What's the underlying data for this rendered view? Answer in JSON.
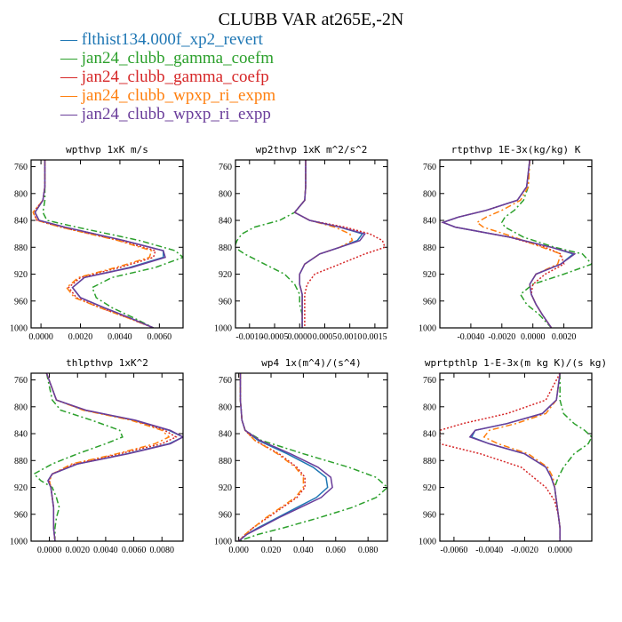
{
  "figure": {
    "title": "CLUBB VAR at265E,-2N"
  },
  "legend": [
    {
      "label": "— flthist134.000f_xp2_revert",
      "color": "#1f77b4",
      "dash": "solid"
    },
    {
      "label": "— jan24_clubb_gamma_coefm",
      "color": "#2ca02c",
      "dash": "dashdot"
    },
    {
      "label": "— jan24_clubb_gamma_coefp",
      "color": "#d62728",
      "dash": "dot"
    },
    {
      "label": "— jan24_clubb_wpxp_ri_expm",
      "color": "#ff7f0e",
      "dash": "dashdot"
    },
    {
      "label": "— jan24_clubb_wpxp_ri_expp",
      "color": "#6a3d9a",
      "dash": "solid"
    }
  ],
  "chart_data": [
    {
      "type": "line",
      "title": "wpthvp  1xK m/s",
      "ylim": [
        1000,
        750
      ],
      "xlim": [
        -0.0005,
        0.0072
      ],
      "yticks": [
        760,
        800,
        840,
        880,
        920,
        960,
        1000
      ],
      "xticks": [
        0.0,
        0.002,
        0.004,
        0.006
      ],
      "xticklabels": [
        "0.0000",
        "0.0020",
        "0.0040",
        "0.0060"
      ],
      "y": [
        750,
        790,
        810,
        828,
        840,
        850,
        870,
        885,
        895,
        910,
        925,
        940,
        955,
        970,
        985,
        1000
      ],
      "series": [
        {
          "name": "flthist134.000f_xp2_revert",
          "values": [
            0.0002,
            0.0002,
            0.0001,
            -0.0003,
            -0.0001,
            0.0012,
            0.0042,
            0.0062,
            0.0062,
            0.0045,
            0.0022,
            0.0016,
            0.002,
            0.0032,
            0.0045,
            0.0057
          ]
        },
        {
          "name": "jan24_clubb_gamma_coefm",
          "values": [
            0.0002,
            0.0002,
            0.0002,
            0.0001,
            0.0003,
            0.0018,
            0.005,
            0.0068,
            0.0072,
            0.0058,
            0.0036,
            0.0026,
            0.0028,
            0.0036,
            0.0047,
            0.0057
          ]
        },
        {
          "name": "jan24_clubb_gamma_coefp",
          "values": [
            0.0002,
            0.0002,
            0.0001,
            -0.0004,
            -0.0002,
            0.001,
            0.004,
            0.0058,
            0.0057,
            0.004,
            0.002,
            0.0014,
            0.0018,
            0.003,
            0.0044,
            0.0057
          ]
        },
        {
          "name": "jan24_clubb_wpxp_ri_expm",
          "values": [
            0.0002,
            0.0002,
            0.0001,
            -0.0004,
            -0.0002,
            0.001,
            0.0039,
            0.0056,
            0.0055,
            0.0038,
            0.0019,
            0.0013,
            0.0017,
            0.003,
            0.0044,
            0.0057
          ]
        },
        {
          "name": "jan24_clubb_wpxp_ri_expp",
          "values": [
            0.0002,
            0.0002,
            0.0001,
            -0.0003,
            -0.0001,
            0.0012,
            0.0042,
            0.0062,
            0.0063,
            0.0046,
            0.0022,
            0.0016,
            0.002,
            0.0032,
            0.0045,
            0.0057
          ]
        }
      ]
    },
    {
      "type": "line",
      "title": "wp2thvp  1xK m^2/s^2",
      "ylim": [
        1000,
        750
      ],
      "xlim": [
        -0.00128,
        0.00175
      ],
      "yticks": [
        760,
        800,
        840,
        880,
        920,
        960,
        1000
      ],
      "xticks": [
        -0.001,
        -0.0005,
        0.0,
        0.0005,
        0.001,
        0.0015
      ],
      "xticklabels": [
        "-0.0010",
        "-0.0005",
        "0.0000",
        "0.0005",
        "0.0010",
        "0.0015"
      ],
      "y": [
        750,
        790,
        810,
        828,
        840,
        850,
        860,
        870,
        880,
        890,
        905,
        920,
        935,
        950,
        965,
        980,
        1000
      ],
      "series": [
        {
          "name": "flthist134.000f_xp2_revert",
          "values": [
            0.00012,
            0.00012,
            0.0001,
            -0.0001,
            0.0002,
            0.0008,
            0.00125,
            0.00115,
            0.0008,
            0.0004,
            0.0001,
            0.0,
            0.0,
            5e-05,
            5e-05,
            5e-05,
            5e-05
          ]
        },
        {
          "name": "jan24_clubb_gamma_coefm",
          "values": [
            0.00012,
            0.00012,
            0.0001,
            -0.0001,
            -0.0004,
            -0.0009,
            -0.00115,
            -0.00125,
            -0.0013,
            -0.0011,
            -0.0007,
            -0.0003,
            -0.0001,
            0.0,
            0.0,
            5e-05,
            5e-05
          ]
        },
        {
          "name": "jan24_clubb_gamma_coefp",
          "values": [
            0.00012,
            0.00012,
            0.0001,
            -0.0001,
            0.0002,
            0.0009,
            0.0014,
            0.00165,
            0.0017,
            0.0013,
            0.0008,
            0.0003,
            0.00015,
            0.0001,
            0.0001,
            0.0001,
            0.0001
          ]
        },
        {
          "name": "jan24_clubb_wpxp_ri_expm",
          "values": [
            0.00012,
            0.00012,
            0.0001,
            -0.0001,
            0.0002,
            0.0007,
            0.001,
            0.00105,
            0.0008,
            0.0004,
            0.0001,
            0.0,
            0.0,
            5e-05,
            5e-05,
            5e-05,
            5e-05
          ]
        },
        {
          "name": "jan24_clubb_wpxp_ri_expp",
          "values": [
            0.00012,
            0.00012,
            0.0001,
            -0.0001,
            0.0002,
            0.0008,
            0.0013,
            0.0012,
            0.0008,
            0.0004,
            0.0001,
            0.0,
            0.0,
            5e-05,
            5e-05,
            5e-05,
            5e-05
          ]
        }
      ]
    },
    {
      "type": "line",
      "title": "rtpthvp  1E-3x(kg/kg) K",
      "ylim": [
        1000,
        750
      ],
      "xlim": [
        -0.006,
        0.0038
      ],
      "yticks": [
        760,
        800,
        840,
        880,
        920,
        960,
        1000
      ],
      "xticks": [
        -0.004,
        -0.002,
        0.0,
        0.002
      ],
      "xticklabels": [
        "-0.0040",
        "-0.0020",
        "0.0000",
        "0.0020"
      ],
      "y": [
        750,
        790,
        810,
        825,
        835,
        843,
        850,
        865,
        880,
        890,
        905,
        920,
        935,
        950,
        965,
        980,
        1000
      ],
      "series": [
        {
          "name": "flthist134.000f_xp2_revert",
          "values": [
            -0.0002,
            -0.0004,
            -0.001,
            -0.003,
            -0.0048,
            -0.0058,
            -0.005,
            -0.0015,
            0.0012,
            0.0026,
            0.0018,
            0.0002,
            -0.0002,
            -0.0001,
            0.0002,
            0.0006,
            0.0012
          ]
        },
        {
          "name": "jan24_clubb_gamma_coefm",
          "values": [
            -0.0002,
            -0.0003,
            -0.0006,
            -0.0012,
            -0.0018,
            -0.002,
            -0.0018,
            -0.0006,
            0.0014,
            0.0032,
            0.0038,
            0.002,
            0.0,
            -0.0008,
            -0.0004,
            0.0004,
            0.0012
          ]
        },
        {
          "name": "jan24_clubb_gamma_coefp",
          "values": [
            -0.0002,
            -0.0004,
            -0.001,
            -0.003,
            -0.0048,
            -0.0058,
            -0.005,
            -0.0015,
            0.0008,
            0.0018,
            0.002,
            0.0008,
            0.0,
            -0.0001,
            0.0002,
            0.0006,
            0.0012
          ]
        },
        {
          "name": "jan24_clubb_wpxp_ri_expm",
          "values": [
            -0.0002,
            -0.0003,
            -0.0008,
            -0.002,
            -0.003,
            -0.0036,
            -0.0032,
            -0.0012,
            0.0006,
            0.0018,
            0.0016,
            0.0002,
            -0.0002,
            -0.0001,
            0.0002,
            0.0006,
            0.0012
          ]
        },
        {
          "name": "jan24_clubb_wpxp_ri_expp",
          "values": [
            -0.0002,
            -0.0004,
            -0.001,
            -0.003,
            -0.0048,
            -0.0058,
            -0.005,
            -0.0015,
            0.0012,
            0.0027,
            0.0018,
            0.0002,
            -0.0002,
            -0.0001,
            0.0002,
            0.0006,
            0.0012
          ]
        }
      ]
    },
    {
      "type": "line",
      "title": "thlpthvp  1xK^2",
      "ylim": [
        1000,
        750
      ],
      "xlim": [
        -0.0013,
        0.0095
      ],
      "yticks": [
        760,
        800,
        840,
        880,
        920,
        960,
        1000
      ],
      "xticks": [
        0.0,
        0.002,
        0.004,
        0.006,
        0.008
      ],
      "xticklabels": [
        "0.0000",
        "0.0020",
        "0.0040",
        "0.0060",
        "0.0080"
      ],
      "y": [
        750,
        790,
        805,
        820,
        835,
        845,
        855,
        870,
        885,
        900,
        910,
        920,
        935,
        950,
        965,
        980,
        1000
      ],
      "series": [
        {
          "name": "flthist134.000f_xp2_revert",
          "values": [
            -0.0002,
            0.0005,
            0.0025,
            0.006,
            0.0085,
            0.0095,
            0.0085,
            0.0055,
            0.002,
            0.0002,
            -0.0001,
            0.0001,
            0.0002,
            0.0003,
            0.0003,
            0.0003,
            0.0004
          ]
        },
        {
          "name": "jan24_clubb_gamma_coefm",
          "values": [
            -0.0002,
            0.0002,
            0.0008,
            0.003,
            0.005,
            0.0052,
            0.004,
            0.002,
            0.0002,
            -0.0011,
            -0.0006,
            0.0002,
            0.0005,
            0.0007,
            0.0005,
            0.0004,
            0.0004
          ]
        },
        {
          "name": "jan24_clubb_gamma_coefp",
          "values": [
            -0.0002,
            0.0005,
            0.0025,
            0.006,
            0.0082,
            0.009,
            0.008,
            0.005,
            0.0018,
            0.0002,
            0.0,
            0.0001,
            0.0002,
            0.0003,
            0.0003,
            0.0003,
            0.0004
          ]
        },
        {
          "name": "jan24_clubb_wpxp_ri_expm",
          "values": [
            -0.0002,
            0.0005,
            0.0024,
            0.0058,
            0.008,
            0.0085,
            0.0075,
            0.0048,
            0.0016,
            0.0002,
            0.0,
            0.0001,
            0.0002,
            0.0003,
            0.0003,
            0.0003,
            0.0004
          ]
        },
        {
          "name": "jan24_clubb_wpxp_ri_expp",
          "values": [
            -0.0002,
            0.0005,
            0.0026,
            0.0061,
            0.0086,
            0.0095,
            0.0086,
            0.0056,
            0.002,
            0.0002,
            -0.0001,
            0.0001,
            0.0002,
            0.0003,
            0.0003,
            0.0003,
            0.0004
          ]
        }
      ]
    },
    {
      "type": "line",
      "title": "wp4  1x(m^4)/(s^4)",
      "ylim": [
        1000,
        750
      ],
      "xlim": [
        -0.002,
        0.092
      ],
      "yticks": [
        760,
        800,
        840,
        880,
        920,
        960,
        1000
      ],
      "xticks": [
        0.0,
        0.02,
        0.04,
        0.06,
        0.08
      ],
      "xticklabels": [
        "0.000",
        "0.020",
        "0.040",
        "0.060",
        "0.080"
      ],
      "y": [
        750,
        790,
        820,
        835,
        850,
        870,
        890,
        905,
        920,
        935,
        950,
        965,
        980,
        990,
        1000
      ],
      "series": [
        {
          "name": "flthist134.000f_xp2_revert",
          "values": [
            0.001,
            0.001,
            0.002,
            0.004,
            0.012,
            0.03,
            0.046,
            0.054,
            0.055,
            0.048,
            0.036,
            0.024,
            0.012,
            0.005,
            0.0
          ]
        },
        {
          "name": "jan24_clubb_gamma_coefm",
          "values": [
            0.001,
            0.001,
            0.002,
            0.004,
            0.014,
            0.04,
            0.068,
            0.085,
            0.092,
            0.085,
            0.07,
            0.05,
            0.028,
            0.012,
            0.0
          ]
        },
        {
          "name": "jan24_clubb_gamma_coefp",
          "values": [
            0.001,
            0.001,
            0.002,
            0.004,
            0.01,
            0.025,
            0.036,
            0.041,
            0.041,
            0.036,
            0.027,
            0.018,
            0.009,
            0.004,
            0.0
          ]
        },
        {
          "name": "jan24_clubb_wpxp_ri_expm",
          "values": [
            0.001,
            0.001,
            0.002,
            0.004,
            0.01,
            0.024,
            0.035,
            0.04,
            0.04,
            0.035,
            0.026,
            0.017,
            0.009,
            0.004,
            0.0
          ]
        },
        {
          "name": "jan24_clubb_wpxp_ri_expp",
          "values": [
            0.001,
            0.001,
            0.002,
            0.004,
            0.013,
            0.032,
            0.049,
            0.057,
            0.058,
            0.051,
            0.038,
            0.025,
            0.013,
            0.005,
            0.0
          ]
        }
      ]
    },
    {
      "type": "line",
      "title": "wprtpthlp  1-E-3x(m kg K)/(s kg)",
      "ylim": [
        1000,
        750
      ],
      "xlim": [
        -0.0068,
        0.0018
      ],
      "yticks": [
        760,
        800,
        840,
        880,
        920,
        960,
        1000
      ],
      "xticks": [
        -0.006,
        -0.004,
        -0.002,
        0.0
      ],
      "xticklabels": [
        "-0.0060",
        "-0.0040",
        "-0.0020",
        "0.0000"
      ],
      "y": [
        750,
        790,
        810,
        825,
        835,
        845,
        855,
        870,
        890,
        905,
        920,
        940,
        960,
        980,
        1000
      ],
      "series": [
        {
          "name": "flthist134.000f_xp2_revert",
          "values": [
            0.0,
            -0.0002,
            -0.001,
            -0.003,
            -0.0048,
            -0.005,
            -0.004,
            -0.002,
            -0.0008,
            -0.0005,
            -0.0003,
            -0.0002,
            -0.0001,
            0.0,
            0.0
          ]
        },
        {
          "name": "jan24_clubb_gamma_coefm",
          "values": [
            0.0,
            0.0,
            0.0002,
            0.0008,
            0.0014,
            0.0018,
            0.0016,
            0.0008,
            0.0002,
            -0.0001,
            -0.0003,
            -0.0002,
            -0.0001,
            0.0,
            0.0
          ]
        },
        {
          "name": "jan24_clubb_gamma_coefp",
          "values": [
            0.0,
            -0.0008,
            -0.003,
            -0.0055,
            -0.0068,
            -0.0068,
            -0.0068,
            -0.0045,
            -0.0022,
            -0.0015,
            -0.0008,
            -0.0003,
            -0.0001,
            0.0,
            0.0
          ]
        },
        {
          "name": "jan24_clubb_wpxp_ri_expm",
          "values": [
            0.0,
            -0.0002,
            -0.0008,
            -0.0025,
            -0.004,
            -0.0043,
            -0.0035,
            -0.0018,
            -0.0007,
            -0.0004,
            -0.0003,
            -0.0002,
            -0.0001,
            0.0,
            0.0
          ]
        },
        {
          "name": "jan24_clubb_wpxp_ri_expp",
          "values": [
            0.0,
            -0.0002,
            -0.001,
            -0.003,
            -0.0048,
            -0.0051,
            -0.004,
            -0.002,
            -0.0008,
            -0.0005,
            -0.0003,
            -0.0002,
            -0.0001,
            0.0,
            0.0
          ]
        }
      ]
    }
  ]
}
